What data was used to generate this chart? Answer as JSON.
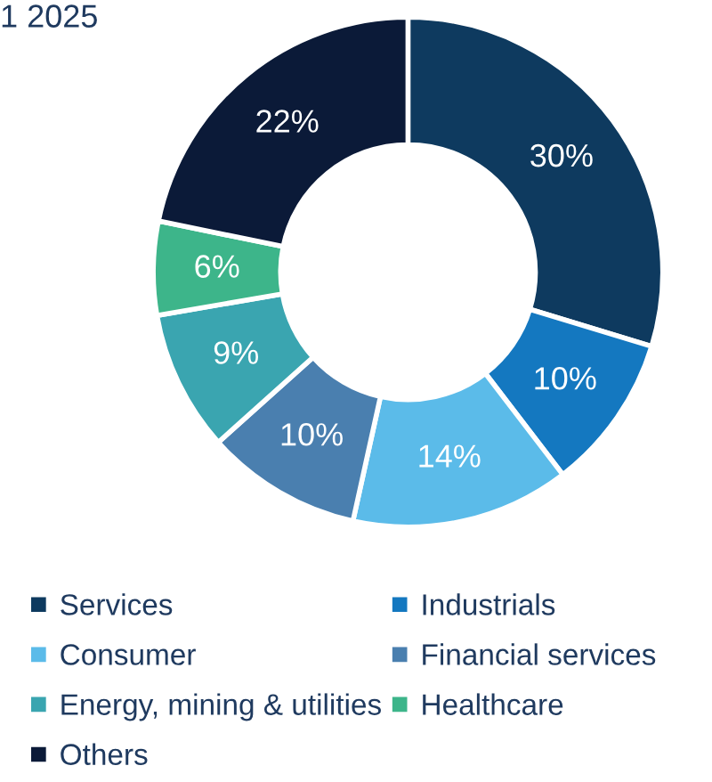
{
  "chart_data": {
    "type": "donut",
    "title": "1 2025",
    "categories": [
      "Services",
      "Industrials",
      "Consumer",
      "Financial services",
      "Energy, mining & utilities",
      "Healthcare",
      "Others"
    ],
    "values": [
      30,
      10,
      14,
      10,
      9,
      6,
      22
    ],
    "colors": [
      "#0e3a5f",
      "#1478c0",
      "#5bbbe9",
      "#4a7faf",
      "#3aa5b0",
      "#3db58a",
      "#0b1a38"
    ],
    "value_labels": [
      "30%",
      "10%",
      "14%",
      "10%",
      "9%",
      "6%",
      "22%"
    ],
    "legend": "bottom"
  }
}
